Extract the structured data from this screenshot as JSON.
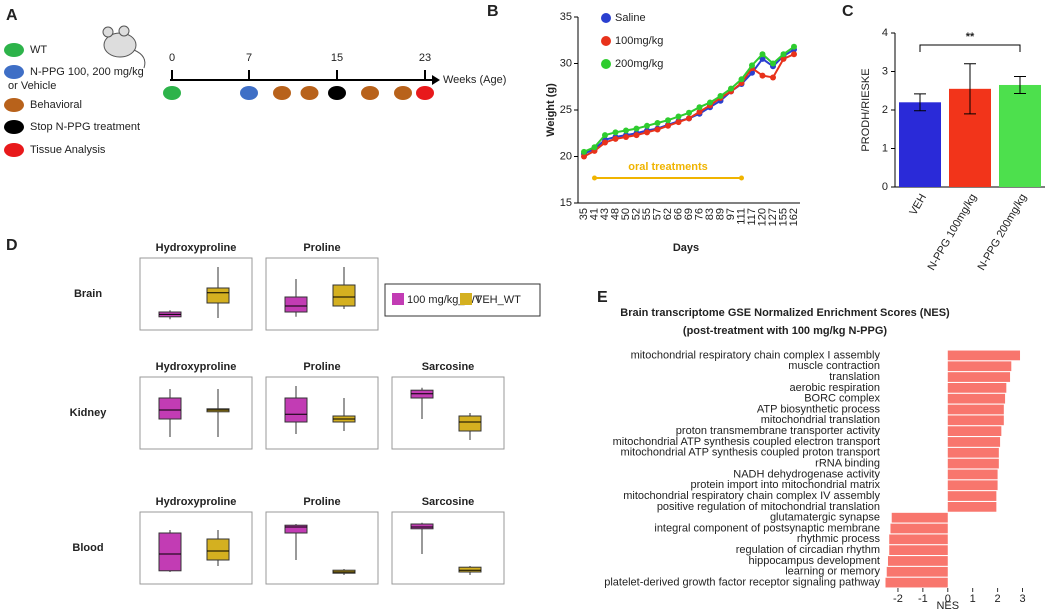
{
  "panel_labels": [
    "A",
    "B",
    "C",
    "D",
    "E"
  ],
  "timeline": {
    "legend": [
      {
        "label": "WT",
        "color": "#2db34a"
      },
      {
        "label": "N-PPG 100, 200 mg/kg",
        "label2": "or Vehicle",
        "color": "#3f6fc6"
      },
      {
        "label": "Behavioral",
        "color": "#b8621b"
      },
      {
        "label": "Stop N-PPG treatment",
        "color": "#000000"
      },
      {
        "label": "Tissue Analysis",
        "color": "#e8191b"
      }
    ],
    "xlim": [
      0,
      23
    ],
    "ticks": [
      0,
      7,
      15,
      23
    ],
    "axis_label": "Weeks (Age)",
    "events": [
      {
        "week": 0,
        "color": "#2db34a"
      },
      {
        "week": 7,
        "color": "#3f6fc6"
      },
      {
        "week": 10,
        "color": "#b8621b"
      },
      {
        "week": 12.5,
        "color": "#b8621b"
      },
      {
        "week": 15,
        "color": "#000000"
      },
      {
        "week": 18,
        "color": "#b8621b"
      },
      {
        "week": 21,
        "color": "#b8621b"
      },
      {
        "week": 23,
        "color": "#e8191b"
      }
    ]
  },
  "chart_data": [
    {
      "type": "line",
      "y_label": "Weight (g)",
      "x_label": "Days",
      "annotation": "oral treatments",
      "annotation_color": "#f0b400",
      "categories": [
        "35",
        "41",
        "43",
        "48",
        "50",
        "52",
        "55",
        "57",
        "62",
        "66",
        "69",
        "76",
        "83",
        "89",
        "97",
        "111",
        "117",
        "120",
        "127",
        "155",
        "162"
      ],
      "ylim": [
        15,
        35
      ],
      "yticks": [
        15,
        20,
        25,
        30,
        35
      ],
      "series": [
        {
          "name": "Saline",
          "color": "#2a3fd0",
          "values": [
            20.3,
            20.8,
            21.8,
            22.1,
            22.3,
            22.5,
            22.8,
            23.0,
            23.4,
            23.8,
            24.1,
            24.6,
            25.3,
            26.0,
            27.0,
            27.8,
            29.0,
            30.5,
            29.7,
            30.8,
            31.5
          ]
        },
        {
          "name": "100mg/kg",
          "color": "#e8321b",
          "values": [
            20.0,
            20.6,
            21.5,
            21.9,
            22.1,
            22.3,
            22.6,
            22.9,
            23.3,
            23.7,
            24.1,
            24.8,
            25.5,
            26.3,
            27.0,
            27.9,
            29.5,
            28.7,
            28.5,
            30.5,
            31.0
          ]
        },
        {
          "name": "200mg/kg",
          "color": "#2ecc2e",
          "values": [
            20.5,
            21.0,
            22.3,
            22.6,
            22.8,
            23.0,
            23.3,
            23.6,
            23.9,
            24.3,
            24.7,
            25.3,
            25.8,
            26.5,
            27.3,
            28.3,
            29.8,
            31.0,
            30.0,
            31.0,
            31.8
          ]
        }
      ]
    },
    {
      "type": "bar",
      "y_label": "PRODH/RIESKE",
      "significance": "**",
      "categories": [
        "VEH",
        "N-PPG 100mg/kg",
        "N-PPG 200mg/kg"
      ],
      "values": [
        2.2,
        2.55,
        2.65
      ],
      "errors": [
        0.22,
        0.65,
        0.22
      ],
      "colors": [
        "#2a2ad8",
        "#f2341a",
        "#4de04d"
      ],
      "ylim": [
        0,
        4
      ],
      "yticks": [
        0,
        1,
        2,
        3,
        4
      ]
    },
    {
      "type": "box",
      "ylim": [
        0,
        1
      ],
      "series": [
        {
          "name": "100 mg/kg_WT",
          "color": "#c23cb4"
        },
        {
          "name": "VEH_WT",
          "color": "#d4b020"
        }
      ],
      "rows": [
        {
          "label": "Brain",
          "plots": [
            {
              "title": "Hydroxyproline",
              "boxes": [
                [
                  0.08,
                  0.12,
                  0.16,
                  0.2,
                  0.23
                ],
                [
                  0.1,
                  0.35,
                  0.52,
                  0.6,
                  0.95
                ]
              ]
            },
            {
              "title": "Proline",
              "boxes": [
                [
                  0.12,
                  0.2,
                  0.3,
                  0.45,
                  0.75
                ],
                [
                  0.25,
                  0.3,
                  0.45,
                  0.65,
                  0.95
                ]
              ]
            }
          ]
        },
        {
          "label": "Kidney",
          "plots": [
            {
              "title": "Hydroxyproline",
              "boxes": [
                [
                  0.1,
                  0.4,
                  0.55,
                  0.75,
                  0.9
                ],
                [
                  0.1,
                  0.52,
                  0.55,
                  0.57,
                  0.9
                ]
              ]
            },
            {
              "title": "Proline",
              "boxes": [
                [
                  0.15,
                  0.35,
                  0.48,
                  0.75,
                  0.95
                ],
                [
                  0.2,
                  0.35,
                  0.4,
                  0.45,
                  0.75
                ]
              ]
            },
            {
              "title": "Sarcosine",
              "boxes": [
                [
                  0.4,
                  0.75,
                  0.82,
                  0.88,
                  0.92
                ],
                [
                  0.05,
                  0.2,
                  0.35,
                  0.45,
                  0.5
                ]
              ]
            }
          ]
        },
        {
          "label": "Blood",
          "plots": [
            {
              "title": "Hydroxyproline",
              "boxes": [
                [
                  0.1,
                  0.12,
                  0.4,
                  0.75,
                  0.8
                ],
                [
                  0.2,
                  0.3,
                  0.45,
                  0.65,
                  0.8
                ]
              ]
            },
            {
              "title": "Proline",
              "boxes": [
                [
                  0.3,
                  0.75,
                  0.85,
                  0.88,
                  0.9
                ],
                [
                  0.05,
                  0.08,
                  0.1,
                  0.13,
                  0.15
                ]
              ]
            },
            {
              "title": "Sarcosine",
              "boxes": [
                [
                  0.4,
                  0.82,
                  0.85,
                  0.9,
                  0.92
                ],
                [
                  0.05,
                  0.1,
                  0.13,
                  0.18,
                  0.2
                ]
              ]
            }
          ]
        }
      ]
    },
    {
      "type": "hbar",
      "title": "Brain transcriptome GSE Normalized Enrichment Scores (NES)",
      "subtitle": "(post-treatment with 100 mg/kg N-PPG)",
      "x_label": "NES",
      "color": "#f8766d",
      "categories": [
        "mitochondrial respiratory chain complex I assembly",
        "muscle contraction",
        "translation",
        "aerobic respiration",
        "BORC complex",
        "ATP biosynthetic process",
        "mitochondrial translation",
        "proton transmembrane transporter activity",
        "mitochondrial ATP synthesis coupled electron transport",
        "mitochondrial ATP synthesis coupled proton transport",
        "rRNA binding",
        "NADH dehydrogenase activity",
        "protein import into mitochondrial matrix",
        "mitochondrial respiratory chain complex IV assembly",
        "positive regulation of mitochondrial translation",
        "glutamatergic synapse",
        "integral component of postsynaptic membrane",
        "rhythmic process",
        "regulation of circadian rhythm",
        "hippocampus development",
        "learning or memory",
        "platelet-derived growth factor receptor signaling pathway"
      ],
      "values": [
        2.9,
        2.55,
        2.5,
        2.35,
        2.3,
        2.25,
        2.25,
        2.15,
        2.1,
        2.05,
        2.05,
        2.0,
        2.0,
        1.95,
        1.95,
        -2.25,
        -2.3,
        -2.35,
        -2.35,
        -2.4,
        -2.45,
        -2.5
      ],
      "xlim": [
        -2.6,
        3.1
      ],
      "xticks": [
        -2,
        -1,
        0,
        1,
        2,
        3
      ]
    }
  ]
}
